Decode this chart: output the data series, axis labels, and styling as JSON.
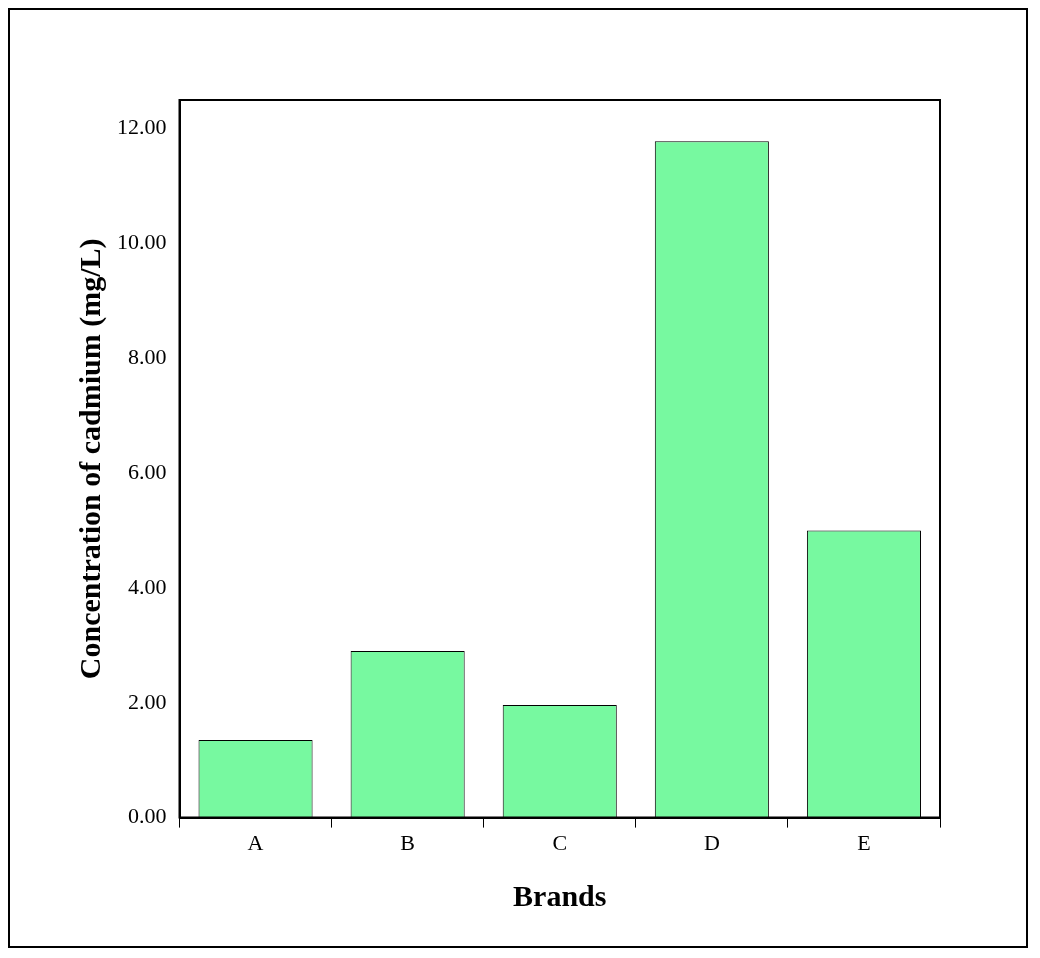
{
  "chart_data": {
    "type": "bar",
    "xlabel": "Brands",
    "ylabel": "Concentration of cadmium (mg/L)",
    "categories": [
      "A",
      "B",
      "C",
      "D",
      "E"
    ],
    "values": [
      1.35,
      2.9,
      1.96,
      11.78,
      5.0
    ],
    "color": "#77f9a0",
    "ylim": [
      0,
      12.5
    ],
    "yticks": [
      {
        "value": 0,
        "label": "0.00"
      },
      {
        "value": 2,
        "label": "2.00"
      },
      {
        "value": 4,
        "label": "4.00"
      },
      {
        "value": 6,
        "label": "6.00"
      },
      {
        "value": 8,
        "label": "8.00"
      },
      {
        "value": 10,
        "label": "10.00"
      },
      {
        "value": 12,
        "label": "12.00"
      }
    ],
    "grid": false,
    "legend": false
  }
}
